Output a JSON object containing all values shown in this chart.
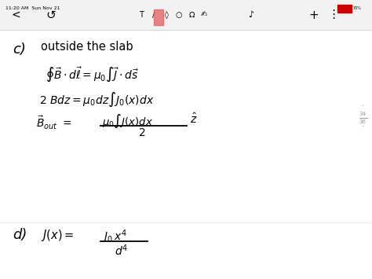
{
  "background_color": "#ffffff",
  "toolbar_bg": "#f2f2f2",
  "toolbar_text": "11:20 AM  Sun Nov 21",
  "section_c_label": "c)",
  "section_c_heading": "outside the slab",
  "section_d_label": "d)",
  "page_num": "34",
  "page_denom": "36"
}
